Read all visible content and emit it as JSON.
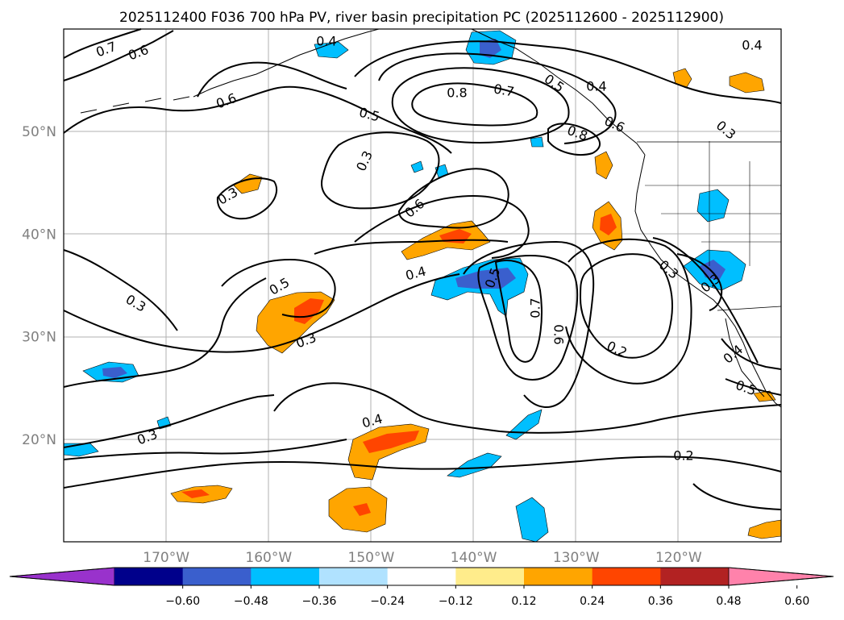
{
  "title": "2025112400 F036 700 hPa PV, river basin precipitation PC (2025112600 - 2025112900)",
  "lat_labels": [
    {
      "text": "50°N",
      "lat": 50
    },
    {
      "text": "40°N",
      "lat": 40
    },
    {
      "text": "30°N",
      "lat": 30
    },
    {
      "text": "20°N",
      "lat": 20
    }
  ],
  "lon_labels": [
    {
      "text": "170°W",
      "lon": -170
    },
    {
      "text": "160°W",
      "lon": -160
    },
    {
      "text": "150°W",
      "lon": -150
    },
    {
      "text": "140°W",
      "lon": -140
    },
    {
      "text": "130°W",
      "lon": -130
    },
    {
      "text": "120°W",
      "lon": -120
    }
  ],
  "map_extent": {
    "lon_min": -180,
    "lon_max": -110,
    "lat_min": 10,
    "lat_max": 60
  },
  "colorbar": {
    "ticks": [
      "−0.60",
      "−0.48",
      "−0.36",
      "−0.24",
      "−0.12",
      "0.12",
      "0.24",
      "0.36",
      "0.48",
      "0.60"
    ],
    "colors": [
      "#9932cc",
      "#00008b",
      "#3a5fcd",
      "#00bfff",
      "#b0e2ff",
      "#ffffff",
      "#ffec8b",
      "#ffa500",
      "#ff4500",
      "#b22222",
      "#ff82ab"
    ]
  },
  "contour_labels": [
    {
      "text": "0.7"
    },
    {
      "text": "0.6"
    },
    {
      "text": "0.4"
    },
    {
      "text": "0.4"
    },
    {
      "text": "0.6"
    },
    {
      "text": "0.8"
    },
    {
      "text": "0.7"
    },
    {
      "text": "0.5"
    },
    {
      "text": "0.4"
    },
    {
      "text": "0.5"
    },
    {
      "text": "0.6"
    },
    {
      "text": "0.8"
    },
    {
      "text": "0.3"
    },
    {
      "text": "0.3"
    },
    {
      "text": "0.3"
    },
    {
      "text": "0.6"
    },
    {
      "text": "0.4"
    },
    {
      "text": "0.5"
    },
    {
      "text": "0.3"
    },
    {
      "text": "0.3"
    },
    {
      "text": "0.5"
    },
    {
      "text": "0.3"
    },
    {
      "text": "0.3"
    },
    {
      "text": "0.7"
    },
    {
      "text": "0.6"
    },
    {
      "text": "0.2"
    },
    {
      "text": "0.4"
    },
    {
      "text": "0.5"
    },
    {
      "text": "0.4"
    },
    {
      "text": "0.3"
    },
    {
      "text": "0.2"
    }
  ]
}
